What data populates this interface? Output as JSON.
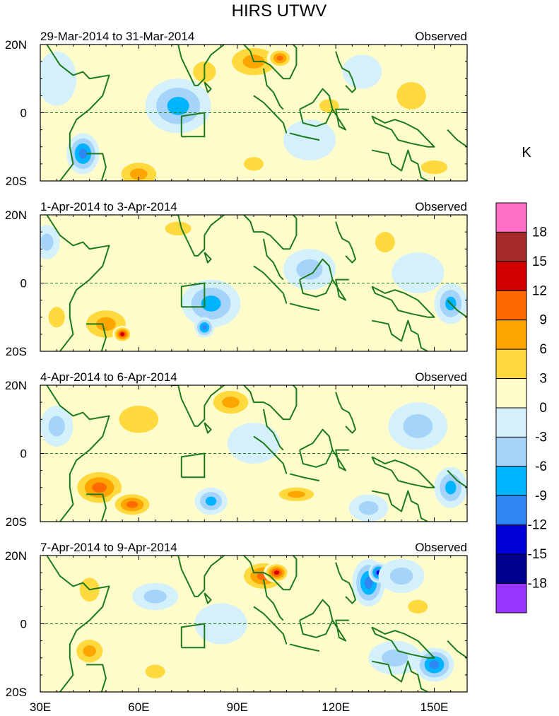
{
  "chart_data": {
    "type": "heatmap",
    "title": "HIRS UTWV",
    "units_label": "K",
    "x_tick_labels": [
      "30E",
      "60E",
      "90E",
      "120E",
      "150E"
    ],
    "x_ticks": [
      30,
      60,
      90,
      120,
      150
    ],
    "xlim": [
      30,
      160
    ],
    "y_tick_labels": [
      "20N",
      "0",
      "20S"
    ],
    "y_ticks": [
      20,
      0,
      -20
    ],
    "ylim": [
      -20,
      20
    ],
    "colorbar": {
      "labels": [
        "18",
        "15",
        "12",
        "9",
        "6",
        "3",
        "0",
        "-3",
        "-6",
        "-9",
        "-12",
        "-15",
        "-18"
      ],
      "levels": [
        18,
        15,
        12,
        9,
        6,
        3,
        0,
        -3,
        -6,
        -9,
        -12,
        -15,
        -18
      ],
      "colors": [
        "#ff6ec7",
        "#a52a2a",
        "#d00000",
        "#ff6a00",
        "#ffa500",
        "#ffd93d",
        "#fffccc",
        "#d4f1fb",
        "#a5d3fa",
        "#00b4ff",
        "#2e87f2",
        "#0000d6",
        "#00008c",
        "#9933ff"
      ]
    },
    "panels": [
      {
        "period": "29-Mar-2014 to 31-Mar-2014",
        "label": "Observed",
        "features": [
          {
            "lon": 95,
            "lat": 15,
            "value": 7,
            "sx": 10,
            "sy": 6
          },
          {
            "lon": 103,
            "lat": 16,
            "value": 12,
            "sx": 4,
            "sy": 3
          },
          {
            "lon": 80,
            "lat": 12,
            "value": 4,
            "sx": 7,
            "sy": 6
          },
          {
            "lon": 60,
            "lat": -18,
            "value": 9,
            "sx": 8,
            "sy": 5
          },
          {
            "lon": 95,
            "lat": -15,
            "value": 5,
            "sx": 6,
            "sy": 4
          },
          {
            "lon": 143,
            "lat": 5,
            "value": 6,
            "sx": 9,
            "sy": 8
          },
          {
            "lon": 150,
            "lat": -16,
            "value": 6,
            "sx": 8,
            "sy": 4
          },
          {
            "lon": 118,
            "lat": 2,
            "value": 4,
            "sx": 6,
            "sy": 4
          },
          {
            "lon": 72,
            "lat": 2,
            "value": -7,
            "sx": 10,
            "sy": 8
          },
          {
            "lon": 43,
            "lat": -12,
            "value": -12,
            "sx": 5,
            "sy": 6
          },
          {
            "lon": 112,
            "lat": -8,
            "value": -3,
            "sx": 8,
            "sy": 6
          },
          {
            "lon": 35,
            "lat": 10,
            "value": -3,
            "sx": 6,
            "sy": 8
          },
          {
            "lon": 128,
            "lat": 12,
            "value": -3,
            "sx": 6,
            "sy": 5
          }
        ]
      },
      {
        "period": "1-Apr-2014 to 3-Apr-2014",
        "label": "Observed",
        "features": [
          {
            "lon": 50,
            "lat": -12,
            "value": 9,
            "sx": 9,
            "sy": 6
          },
          {
            "lon": 55,
            "lat": -15,
            "value": 14,
            "sx": 3,
            "sy": 2.5
          },
          {
            "lon": 35,
            "lat": -10,
            "value": 5,
            "sx": 5,
            "sy": 6
          },
          {
            "lon": 72,
            "lat": 16,
            "value": 4,
            "sx": 8,
            "sy": 4
          },
          {
            "lon": 135,
            "lat": 12,
            "value": 4,
            "sx": 6,
            "sy": 6
          },
          {
            "lon": 100,
            "lat": -14,
            "value": 3,
            "sx": 8,
            "sy": 4
          },
          {
            "lon": 82,
            "lat": -6,
            "value": -9,
            "sx": 9,
            "sy": 7
          },
          {
            "lon": 80,
            "lat": -13,
            "value": -12,
            "sx": 3,
            "sy": 3
          },
          {
            "lon": 112,
            "lat": 4,
            "value": -4,
            "sx": 8,
            "sy": 6
          },
          {
            "lon": 155,
            "lat": -6,
            "value": -8,
            "sx": 5,
            "sy": 6
          },
          {
            "lon": 145,
            "lat": 3,
            "value": -3,
            "sx": 8,
            "sy": 6
          },
          {
            "lon": 32,
            "lat": 12,
            "value": -5,
            "sx": 4,
            "sy": 5
          }
        ]
      },
      {
        "period": "4-Apr-2014 to 6-Apr-2014",
        "label": "Observed",
        "features": [
          {
            "lon": 48,
            "lat": -10,
            "value": 11,
            "sx": 9,
            "sy": 6
          },
          {
            "lon": 58,
            "lat": -15,
            "value": 12,
            "sx": 7,
            "sy": 4
          },
          {
            "lon": 60,
            "lat": 10,
            "value": 4,
            "sx": 12,
            "sy": 8
          },
          {
            "lon": 88,
            "lat": 15,
            "value": 7,
            "sx": 8,
            "sy": 5
          },
          {
            "lon": 108,
            "lat": -12,
            "value": 8,
            "sx": 8,
            "sy": 3
          },
          {
            "lon": 118,
            "lat": 8,
            "value": 3,
            "sx": 5,
            "sy": 5
          },
          {
            "lon": 82,
            "lat": -14,
            "value": -8,
            "sx": 5,
            "sy": 4
          },
          {
            "lon": 145,
            "lat": 8,
            "value": -6,
            "sx": 9,
            "sy": 7
          },
          {
            "lon": 155,
            "lat": -10,
            "value": -9,
            "sx": 5,
            "sy": 6
          },
          {
            "lon": 130,
            "lat": -16,
            "value": -6,
            "sx": 6,
            "sy": 4
          },
          {
            "lon": 35,
            "lat": 8,
            "value": -5,
            "sx": 5,
            "sy": 6
          },
          {
            "lon": 95,
            "lat": 3,
            "value": -3,
            "sx": 8,
            "sy": 6
          }
        ]
      },
      {
        "period": "7-Apr-2014 to 9-Apr-2014",
        "label": "Observed",
        "features": [
          {
            "lon": 98,
            "lat": 14,
            "value": 10,
            "sx": 8,
            "sy": 5
          },
          {
            "lon": 102,
            "lat": 15,
            "value": 14,
            "sx": 4,
            "sy": 3
          },
          {
            "lon": 45,
            "lat": 10,
            "value": 5,
            "sx": 6,
            "sy": 7
          },
          {
            "lon": 45,
            "lat": -8,
            "value": 7,
            "sx": 6,
            "sy": 5
          },
          {
            "lon": 65,
            "lat": -14,
            "value": 4,
            "sx": 6,
            "sy": 4
          },
          {
            "lon": 145,
            "lat": 5,
            "value": 4,
            "sx": 6,
            "sy": 4
          },
          {
            "lon": 130,
            "lat": 12,
            "value": -12,
            "sx": 5,
            "sy": 7
          },
          {
            "lon": 133,
            "lat": 15,
            "value": -14,
            "sx": 3,
            "sy": 3
          },
          {
            "lon": 140,
            "lat": 14,
            "value": -6,
            "sx": 7,
            "sy": 5
          },
          {
            "lon": 150,
            "lat": -12,
            "value": -11,
            "sx": 6,
            "sy": 5
          },
          {
            "lon": 138,
            "lat": -10,
            "value": -6,
            "sx": 8,
            "sy": 5
          },
          {
            "lon": 65,
            "lat": 8,
            "value": -5,
            "sx": 7,
            "sy": 4
          },
          {
            "lon": 85,
            "lat": 0,
            "value": -3,
            "sx": 8,
            "sy": 6
          }
        ]
      }
    ]
  }
}
